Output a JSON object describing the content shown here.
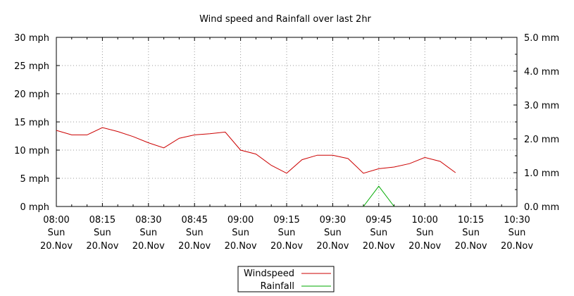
{
  "chart_data": {
    "type": "line",
    "title": "Wind speed and Rainfall over last 2hr",
    "x_ticks": [
      {
        "time": "08:00",
        "day": "Sun",
        "date": "20.Nov"
      },
      {
        "time": "08:15",
        "day": "Sun",
        "date": "20.Nov"
      },
      {
        "time": "08:30",
        "day": "Sun",
        "date": "20.Nov"
      },
      {
        "time": "08:45",
        "day": "Sun",
        "date": "20.Nov"
      },
      {
        "time": "09:00",
        "day": "Sun",
        "date": "20.Nov"
      },
      {
        "time": "09:15",
        "day": "Sun",
        "date": "20.Nov"
      },
      {
        "time": "09:30",
        "day": "Sun",
        "date": "20.Nov"
      },
      {
        "time": "09:45",
        "day": "Sun",
        "date": "20.Nov"
      },
      {
        "time": "10:00",
        "day": "Sun",
        "date": "20.Nov"
      },
      {
        "time": "10:15",
        "day": "Sun",
        "date": "20.Nov"
      },
      {
        "time": "10:30",
        "day": "Sun",
        "date": "20.Nov"
      }
    ],
    "xlim": [
      "08:00",
      "10:30"
    ],
    "y_left": {
      "unit": "mph",
      "ylim": [
        0,
        30
      ],
      "tick_labels": [
        "0 mph",
        "5 mph",
        "10 mph",
        "15 mph",
        "20 mph",
        "25 mph",
        "30 mph"
      ]
    },
    "y_right": {
      "unit": "mm",
      "ylim": [
        0,
        5
      ],
      "tick_labels": [
        "0.0 mm",
        "1.0 mm",
        "2.0 mm",
        "3.0 mm",
        "4.0 mm",
        "5.0 mm"
      ]
    },
    "grid": true,
    "legend_position": "bottom-center",
    "series": [
      {
        "name": "Windspeed",
        "axis": "left",
        "color": "#cc0000",
        "points": [
          {
            "x": "08:00",
            "y": 13.5
          },
          {
            "x": "08:05",
            "y": 12.7
          },
          {
            "x": "08:10",
            "y": 12.7
          },
          {
            "x": "08:15",
            "y": 14.0
          },
          {
            "x": "08:20",
            "y": 13.3
          },
          {
            "x": "08:25",
            "y": 12.4
          },
          {
            "x": "08:30",
            "y": 11.3
          },
          {
            "x": "08:35",
            "y": 10.4
          },
          {
            "x": "08:40",
            "y": 12.1
          },
          {
            "x": "08:45",
            "y": 12.7
          },
          {
            "x": "08:50",
            "y": 12.9
          },
          {
            "x": "08:55",
            "y": 13.2
          },
          {
            "x": "09:00",
            "y": 10.0
          },
          {
            "x": "09:05",
            "y": 9.3
          },
          {
            "x": "09:10",
            "y": 7.3
          },
          {
            "x": "09:15",
            "y": 5.9
          },
          {
            "x": "09:20",
            "y": 8.3
          },
          {
            "x": "09:25",
            "y": 9.1
          },
          {
            "x": "09:30",
            "y": 9.1
          },
          {
            "x": "09:35",
            "y": 8.5
          },
          {
            "x": "09:40",
            "y": 5.9
          },
          {
            "x": "09:45",
            "y": 6.7
          },
          {
            "x": "09:50",
            "y": 7.0
          },
          {
            "x": "09:55",
            "y": 7.6
          },
          {
            "x": "10:00",
            "y": 8.7
          },
          {
            "x": "10:05",
            "y": 8.0
          },
          {
            "x": "10:10",
            "y": 6.0
          }
        ]
      },
      {
        "name": "Rainfall",
        "axis": "right",
        "color": "#00aa00",
        "points": [
          {
            "x": "09:40",
            "y": 0.0
          },
          {
            "x": "09:45",
            "y": 0.6
          },
          {
            "x": "09:50",
            "y": 0.0
          }
        ]
      }
    ]
  }
}
